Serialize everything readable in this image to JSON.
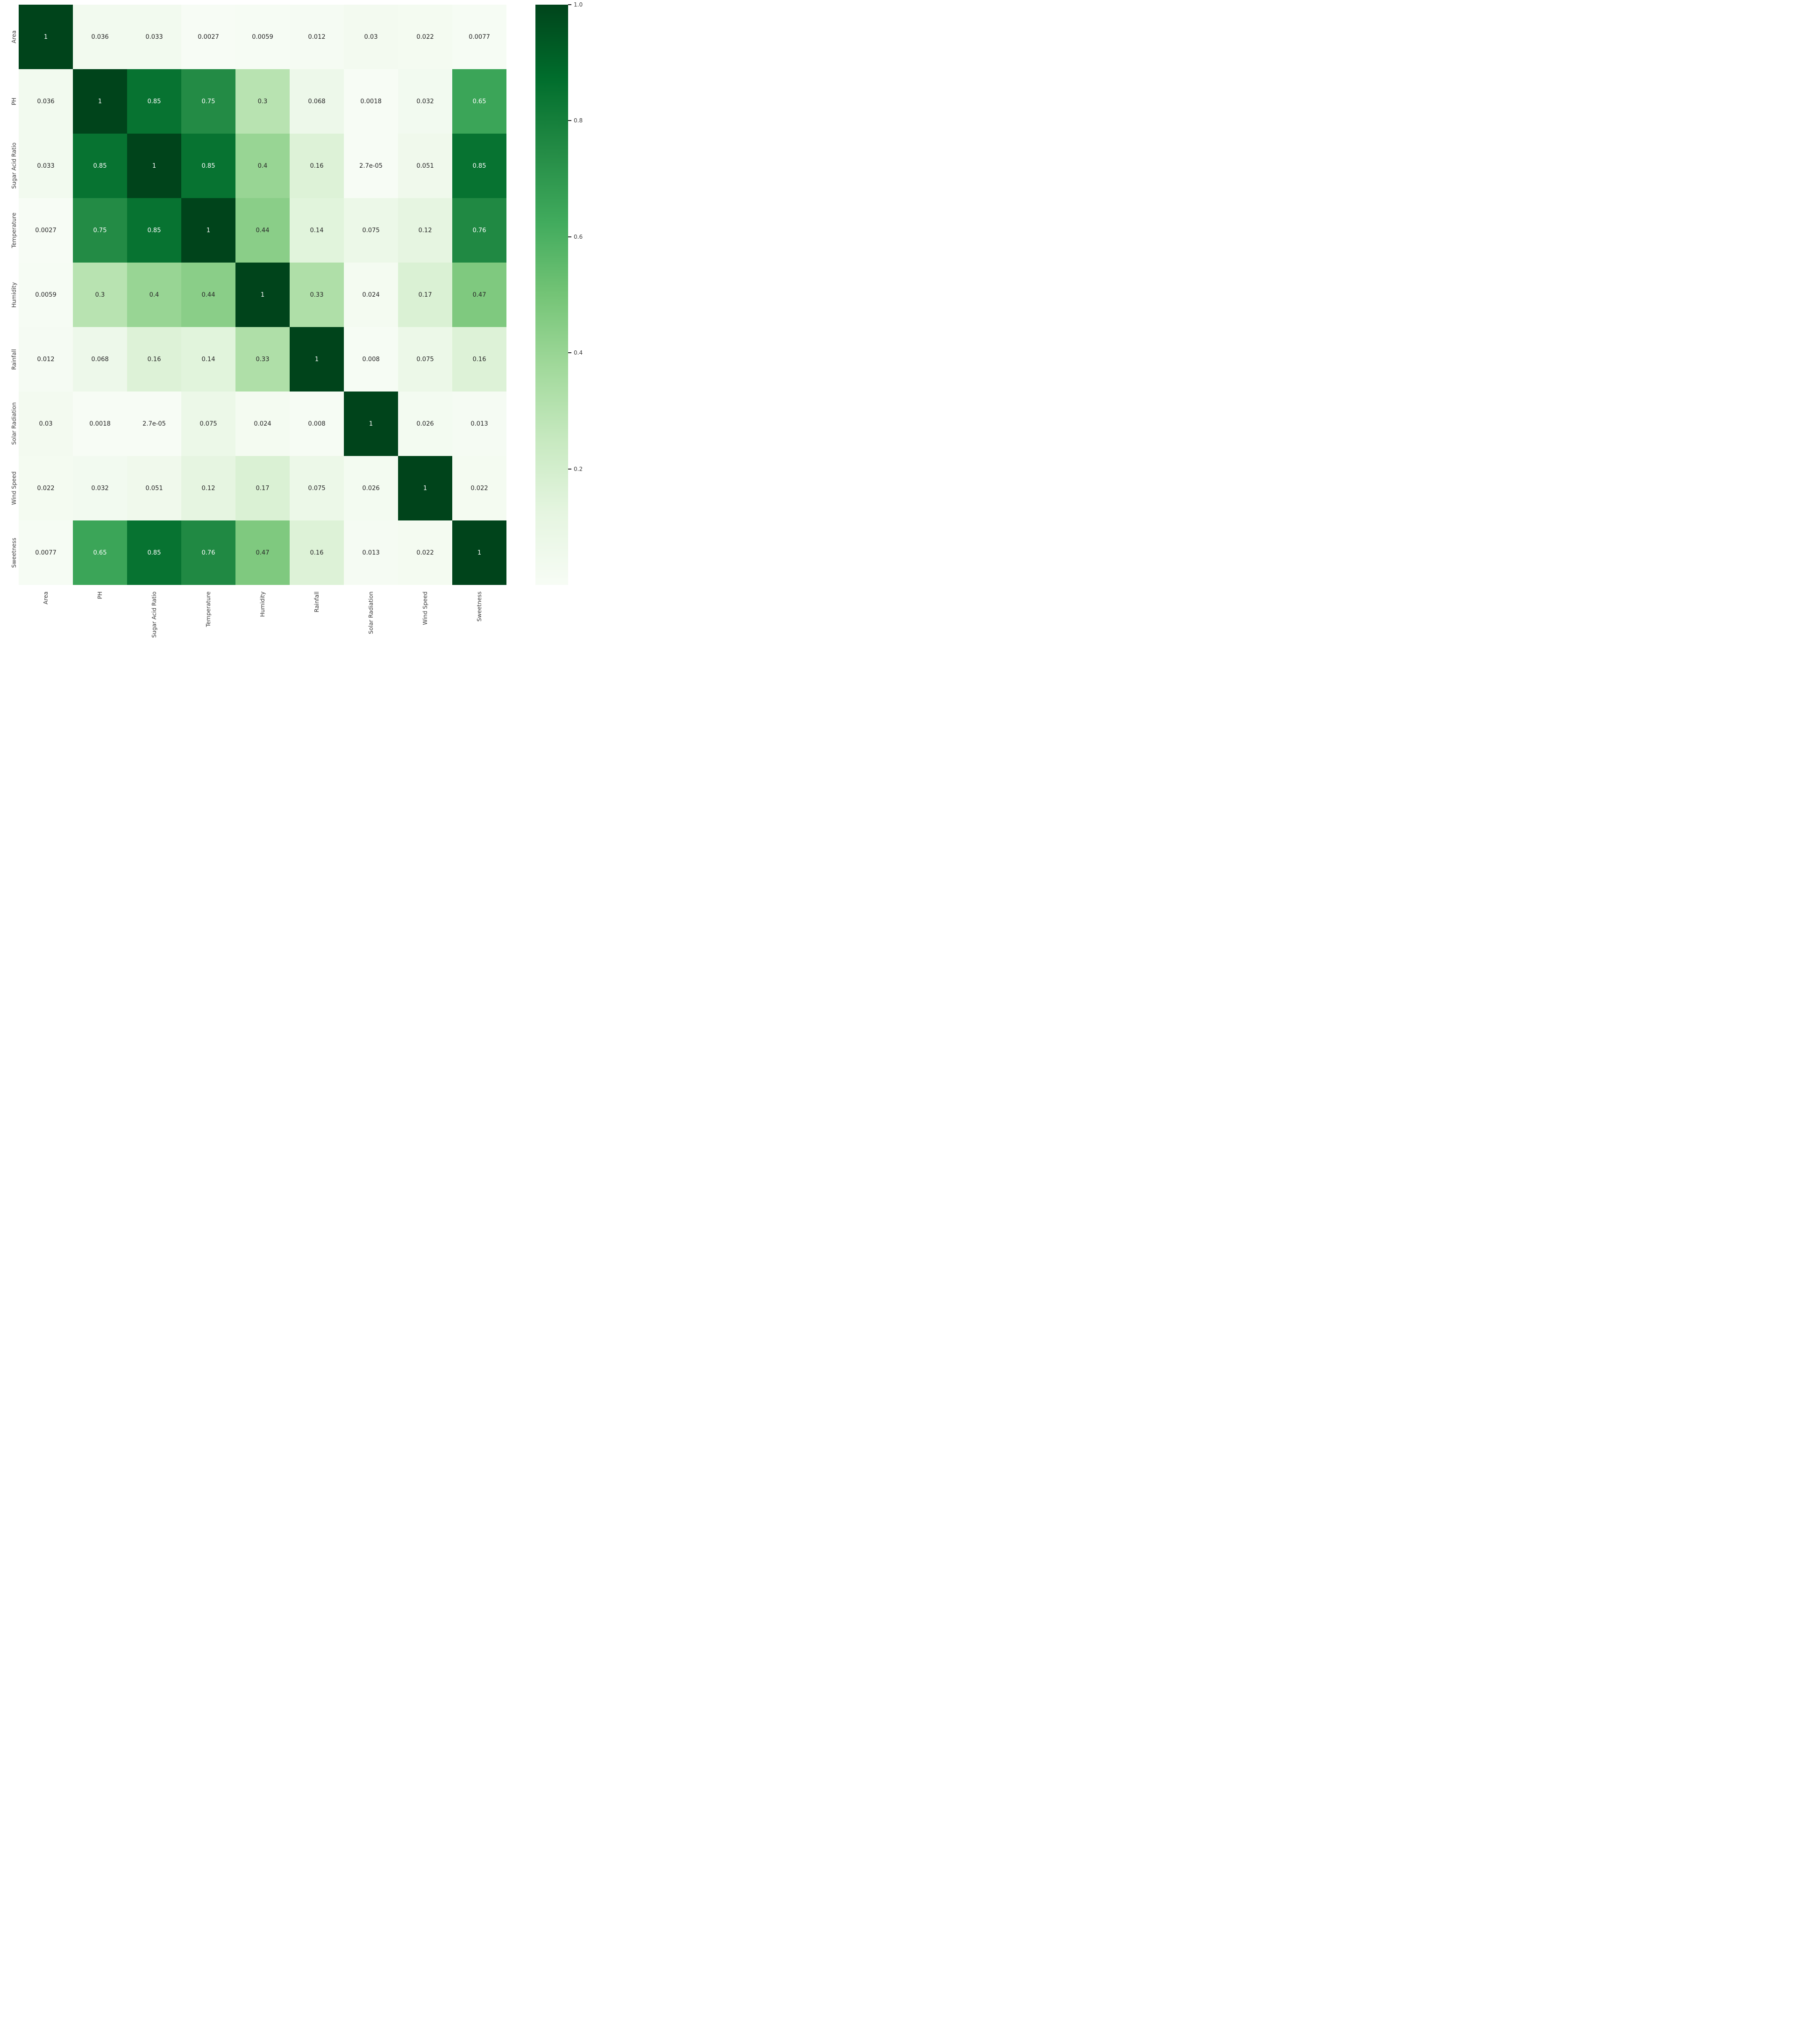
{
  "figure": {
    "background": "#ffffff",
    "title": ""
  },
  "chart_data": {
    "type": "heatmap",
    "title": "",
    "xlabel": "",
    "ylabel": "",
    "categories": [
      "Area",
      "PH",
      "Sugar Acid Ratio",
      "Temperature",
      "Humidity",
      "Rainfall",
      "Solar Radiation",
      "Wind Speed",
      "Sweetness"
    ],
    "values": [
      [
        1,
        0.036,
        0.033,
        0.0027,
        0.0059,
        0.012,
        0.03,
        0.022,
        0.0077
      ],
      [
        0.036,
        1,
        0.85,
        0.75,
        0.3,
        0.068,
        0.0018,
        0.032,
        0.65
      ],
      [
        0.033,
        0.85,
        1,
        0.85,
        0.4,
        0.16,
        2.7e-05,
        0.051,
        0.85
      ],
      [
        0.0027,
        0.75,
        0.85,
        1,
        0.44,
        0.14,
        0.075,
        0.12,
        0.76
      ],
      [
        0.0059,
        0.3,
        0.4,
        0.44,
        1,
        0.33,
        0.024,
        0.17,
        0.47
      ],
      [
        0.012,
        0.068,
        0.16,
        0.14,
        0.33,
        1,
        0.008,
        0.075,
        0.16
      ],
      [
        0.03,
        0.0018,
        2.7e-05,
        0.075,
        0.024,
        0.008,
        1,
        0.026,
        0.013
      ],
      [
        0.022,
        0.032,
        0.051,
        0.12,
        0.17,
        0.075,
        0.026,
        1,
        0.022
      ],
      [
        0.0077,
        0.65,
        0.85,
        0.76,
        0.47,
        0.16,
        0.013,
        0.022,
        1
      ]
    ],
    "cell_labels": [
      [
        "1",
        "0.036",
        "0.033",
        "0.0027",
        "0.0059",
        "0.012",
        "0.03",
        "0.022",
        "0.0077"
      ],
      [
        "0.036",
        "1",
        "0.85",
        "0.75",
        "0.3",
        "0.068",
        "0.0018",
        "0.032",
        "0.65"
      ],
      [
        "0.033",
        "0.85",
        "1",
        "0.85",
        "0.4",
        "0.16",
        "2.7e-05",
        "0.051",
        "0.85"
      ],
      [
        "0.0027",
        "0.75",
        "0.85",
        "1",
        "0.44",
        "0.14",
        "0.075",
        "0.12",
        "0.76"
      ],
      [
        "0.0059",
        "0.3",
        "0.4",
        "0.44",
        "1",
        "0.33",
        "0.024",
        "0.17",
        "0.47"
      ],
      [
        "0.012",
        "0.068",
        "0.16",
        "0.14",
        "0.33",
        "1",
        "0.008",
        "0.075",
        "0.16"
      ],
      [
        "0.03",
        "0.0018",
        "2.7e-05",
        "0.075",
        "0.024",
        "0.008",
        "1",
        "0.026",
        "0.013"
      ],
      [
        "0.022",
        "0.032",
        "0.051",
        "0.12",
        "0.17",
        "0.075",
        "0.026",
        "1",
        "0.022"
      ],
      [
        "0.0077",
        "0.65",
        "0.85",
        "0.76",
        "0.47",
        "0.16",
        "0.013",
        "0.022",
        "1"
      ]
    ],
    "vmin": 2.7e-05,
    "vmax": 1.0,
    "grid": false,
    "tick_label_rotation": 90,
    "colormap": {
      "name": "Greens",
      "stops": [
        {
          "p": 0.0,
          "color": "#f7fcf5"
        },
        {
          "p": 0.125,
          "color": "#e5f5e0"
        },
        {
          "p": 0.25,
          "color": "#c7e9c0"
        },
        {
          "p": 0.375,
          "color": "#a1d99b"
        },
        {
          "p": 0.5,
          "color": "#74c476"
        },
        {
          "p": 0.625,
          "color": "#41ab5d"
        },
        {
          "p": 0.75,
          "color": "#238b45"
        },
        {
          "p": 0.875,
          "color": "#006d2c"
        },
        {
          "p": 1.0,
          "color": "#00441b"
        }
      ]
    },
    "annotation_colors": {
      "light": "#ffffff",
      "dark": "#262626",
      "light_text_threshold": 0.6
    },
    "colorbar": {
      "position": "right",
      "ticks": [
        {
          "value": 1.0,
          "label": "1.0"
        },
        {
          "value": 0.8,
          "label": "0.8"
        },
        {
          "value": 0.6,
          "label": "0.6"
        },
        {
          "value": 0.4,
          "label": "0.4"
        },
        {
          "value": 0.2,
          "label": "0.2"
        }
      ]
    }
  }
}
